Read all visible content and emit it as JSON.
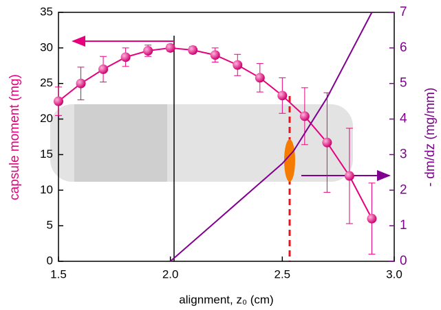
{
  "chart_data": {
    "type": "line",
    "xlabel": "alignment, z₀  (cm)",
    "ylabel": "capsule moment  (mg)",
    "y2label": "- dm/dz  (mg/mm)",
    "xlim": [
      1.5,
      3.0
    ],
    "xticks": [
      {
        "value": 1.5,
        "label": "1.5"
      },
      {
        "value": 2.0,
        "label": "2.0"
      },
      {
        "value": 2.5,
        "label": "2.5"
      },
      {
        "value": 3.0,
        "label": "3.0"
      }
    ],
    "ylim": [
      0,
      35
    ],
    "yticks": [
      0,
      5,
      10,
      15,
      20,
      25,
      30,
      35
    ],
    "y2lim": [
      0,
      7
    ],
    "y2ticks": [
      0,
      1,
      2,
      3,
      4,
      5,
      6,
      7
    ],
    "series": [
      {
        "color": "#e6007e",
        "axis": "y",
        "x": [
          1.5,
          1.6,
          1.7,
          1.8,
          1.9,
          2.0,
          2.1,
          2.2,
          2.3,
          2.4,
          2.5,
          2.6,
          2.7,
          2.8,
          2.9
        ],
        "values": [
          22.5,
          25,
          27,
          28.7,
          29.6,
          30,
          29.7,
          29,
          27.6,
          25.8,
          23.3,
          20.4,
          16.7,
          12,
          6
        ],
        "errors": [
          2,
          2.3,
          1.8,
          1.3,
          0.8,
          0.5,
          0.5,
          1,
          1.5,
          2,
          2.5,
          4,
          7,
          6.7,
          5
        ]
      },
      {
        "color": "#800090",
        "axis": "y2",
        "x": [
          2.0,
          2.1,
          2.2,
          2.3,
          2.4,
          2.5,
          2.55,
          2.6,
          2.7,
          2.8,
          2.9
        ],
        "values": [
          0,
          0.55,
          1.1,
          1.65,
          2.2,
          2.75,
          3.1,
          3.6,
          4.6,
          5.8,
          7.0
        ]
      }
    ]
  }
}
